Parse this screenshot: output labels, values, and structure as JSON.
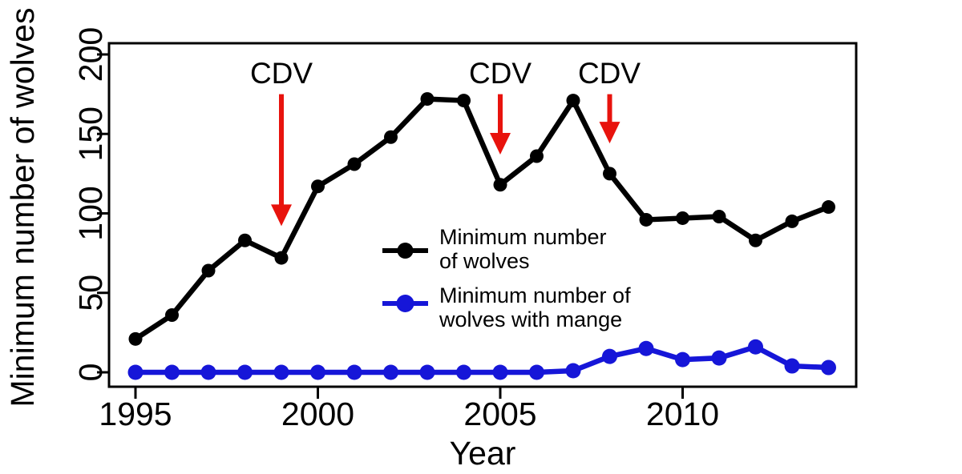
{
  "figure": {
    "background": "#ffffff"
  },
  "chart_data": {
    "type": "line",
    "title": "",
    "xlabel": "Year",
    "ylabel": "Minimum number of wolves",
    "x": [
      1995,
      1996,
      1997,
      1998,
      1999,
      2000,
      2001,
      2002,
      2003,
      2004,
      2005,
      2006,
      2007,
      2008,
      2009,
      2010,
      2011,
      2012,
      2013,
      2014
    ],
    "series": [
      {
        "name": "Minimum number of wolves",
        "legend_lines": [
          "Minimum number",
          "of wolves"
        ],
        "color": "#000000",
        "marker": "circle",
        "values": [
          21,
          36,
          64,
          83,
          72,
          117,
          131,
          148,
          172,
          171,
          118,
          136,
          171,
          125,
          96,
          97,
          98,
          83,
          95,
          104
        ]
      },
      {
        "name": "Minimum number of wolves with mange",
        "legend_lines": [
          "Minimum number of",
          "wolves with mange"
        ],
        "color": "#1616d8",
        "marker": "circle",
        "values": [
          0,
          0,
          0,
          0,
          0,
          0,
          0,
          0,
          0,
          0,
          0,
          0,
          1,
          10,
          15,
          8,
          9,
          16,
          4,
          3
        ]
      }
    ],
    "xticks": [
      1995,
      2000,
      2005,
      2010
    ],
    "yticks": [
      0,
      50,
      100,
      150,
      200
    ],
    "xlim": [
      1994.3,
      2014.7
    ],
    "ylim": [
      -9,
      207
    ],
    "grid": false,
    "legend_position": "inside-center",
    "annotation_color": "#e8130d",
    "annotations": [
      {
        "label": "CDV",
        "x": 1999,
        "arrow_from": 175,
        "arrow_to": 92
      },
      {
        "label": "CDV",
        "x": 2005,
        "arrow_from": 175,
        "arrow_to": 137
      },
      {
        "label": "CDV",
        "x": 2008,
        "arrow_from": 175,
        "arrow_to": 144
      }
    ]
  }
}
